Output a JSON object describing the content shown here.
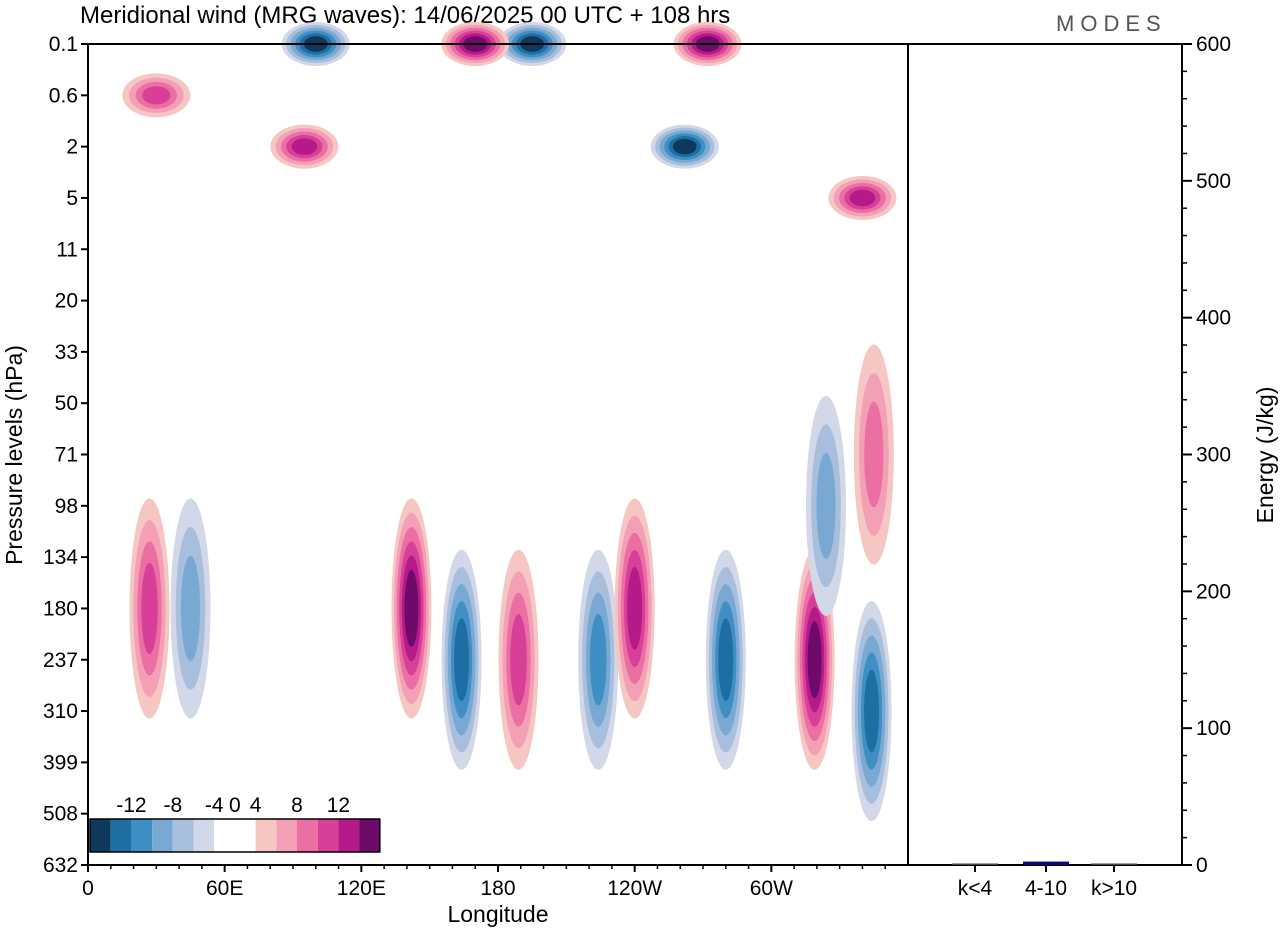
{
  "header": {
    "title": "Meridional wind (MRG waves):  14/06/2025  00 UTC  + 108 hrs",
    "brand": "MODES"
  },
  "colors": {
    "negative": [
      "#0d3a5c",
      "#1f6ea3",
      "#3f8fc4",
      "#79a9d2",
      "#a7bfdd",
      "#d3d8e8"
    ],
    "zero": "#ffffff",
    "positive": [
      "#f6c6c2",
      "#f3a0b6",
      "#ec6fa4",
      "#d73f98",
      "#b5198a",
      "#6e0a6a"
    ],
    "energy_bar": "#0a0a80"
  },
  "chart_data": [
    {
      "type": "heatmap",
      "title": "Meridional wind (MRG waves):  14/06/2025  00 UTC  + 108 hrs",
      "xlabel": "Longitude",
      "ylabel": "Pressure levels (hPa)",
      "x_ticks": [
        "0",
        "60E",
        "120E",
        "180",
        "120W",
        "60W"
      ],
      "y_levels": [
        "0.1",
        "0.6",
        "2",
        "5",
        "11",
        "20",
        "33",
        "50",
        "71",
        "98",
        "134",
        "180",
        "237",
        "310",
        "399",
        "508",
        "632"
      ],
      "colorbar": {
        "labels": [
          "-12",
          "-8",
          "-4",
          "0",
          "4",
          "8",
          "12"
        ],
        "levels": [
          -14,
          -12,
          -10,
          -8,
          -6,
          -4,
          -2,
          2,
          4,
          6,
          8,
          10,
          12,
          14
        ]
      },
      "features": [
        {
          "lon": 142,
          "level": "180",
          "value": 11
        },
        {
          "lon": 164,
          "level": "237",
          "value": -9
        },
        {
          "lon": 189,
          "level": "237",
          "value": 8
        },
        {
          "lon": 224,
          "level": "237",
          "value": -8
        },
        {
          "lon": 240,
          "level": "180",
          "value": 9
        },
        {
          "lon": 280,
          "level": "237",
          "value": -10
        },
        {
          "lon": 319,
          "level": "237",
          "value": 12
        },
        {
          "lon": 344,
          "level": "310",
          "value": -9
        },
        {
          "lon": 27,
          "level": "180",
          "value": 7
        },
        {
          "lon": 45,
          "level": "180",
          "value": -5
        },
        {
          "lon": 324,
          "level": "98",
          "value": -6
        },
        {
          "lon": 345,
          "level": "71",
          "value": 6
        },
        {
          "lon": 195,
          "level": "0.1",
          "value": -14
        },
        {
          "lon": 272,
          "level": "0.1",
          "value": 14
        },
        {
          "lon": 262,
          "level": "2",
          "value": -12
        },
        {
          "lon": 100,
          "level": "0.1",
          "value": -12
        },
        {
          "lon": 170,
          "level": "0.1",
          "value": 12
        },
        {
          "lon": 95,
          "level": "2",
          "value": 9
        },
        {
          "lon": 340,
          "level": "5",
          "value": 9
        },
        {
          "lon": 30,
          "level": "0.6",
          "value": 8
        }
      ]
    },
    {
      "type": "bar",
      "categories": [
        "k<4",
        "4-10",
        "k>10"
      ],
      "values": [
        0.5,
        2.5,
        0.5
      ],
      "ylabel": "Energy (J/kg)",
      "ylim": [
        0,
        600
      ],
      "yticks": [
        0,
        100,
        200,
        300,
        400,
        500,
        600
      ]
    }
  ]
}
